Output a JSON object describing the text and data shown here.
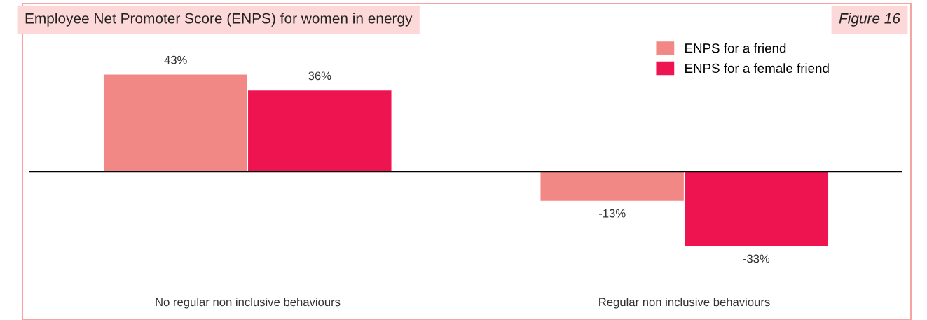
{
  "chart_data": {
    "type": "bar",
    "title": "Employee Net Promoter Score (ENPS) for women in energy",
    "categories": [
      "No regular non inclusive behaviours",
      "Regular non inclusive behaviours"
    ],
    "series": [
      {
        "name": "ENPS for a friend",
        "color": "#f28886",
        "values": [
          43,
          -13
        ],
        "value_labels": [
          "43%",
          "-13%"
        ]
      },
      {
        "name": "ENPS for a female friend",
        "color": "#ee1450",
        "values": [
          36,
          -33
        ],
        "value_labels": [
          "36%",
          "-33%"
        ]
      }
    ],
    "annotations": [
      "Figure 16"
    ],
    "legend": "top right",
    "grid": false
  }
}
